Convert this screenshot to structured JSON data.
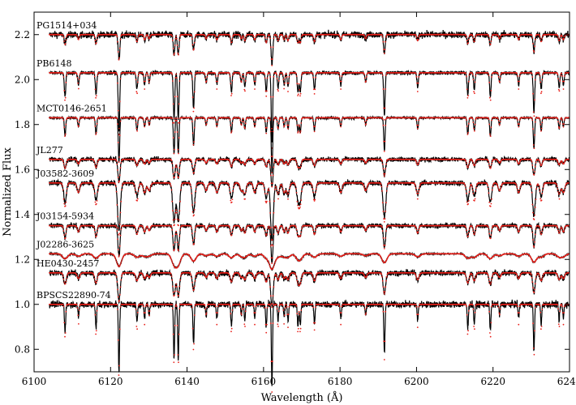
{
  "chart_data": {
    "type": "line",
    "xlabel": "Wavelength (Å)",
    "ylabel": "Normalized Flux",
    "xlim": [
      6100,
      6240
    ],
    "ylim": [
      0.7,
      2.3
    ],
    "xticks": [
      6100,
      6120,
      6140,
      6160,
      6180,
      6200,
      6220,
      6240
    ],
    "yticks": [
      0.8,
      1.0,
      1.2,
      1.4,
      1.6,
      1.8,
      2.0,
      2.2
    ],
    "xtick_labels": [
      "6100",
      "6120",
      "6140",
      "6160",
      "6180",
      "6200",
      "6220",
      "6240"
    ],
    "ytick_labels": [
      "0.8",
      "1.0",
      "1.2",
      "1.4",
      "1.6",
      "1.8",
      "2.0",
      "2.2"
    ],
    "grid": false,
    "observed_color": "#000000",
    "model_color": "#e8201a",
    "x_start": 6104,
    "series": [
      {
        "name": "PG1514+034",
        "offset": 2.2,
        "noise": 0.014,
        "strength": 0.45,
        "broad": 1.0,
        "model_diff": 0.002
      },
      {
        "name": "PB6148",
        "offset": 2.03,
        "noise": 0.008,
        "strength": 1.05,
        "broad": 0.85,
        "model_diff": 0.02
      },
      {
        "name": "MCT0146-2651",
        "offset": 1.83,
        "noise": 0.005,
        "strength": 0.8,
        "broad": 0.8,
        "model_diff": 0.005
      },
      {
        "name": "JL277",
        "offset": 1.645,
        "noise": 0.01,
        "strength": 0.4,
        "broad": 1.3,
        "model_diff": 0.002
      },
      {
        "name": "J03582-3609",
        "offset": 1.54,
        "noise": 0.011,
        "strength": 0.85,
        "broad": 1.6,
        "model_diff": 0.02
      },
      {
        "name": "J03154-5934",
        "offset": 1.35,
        "noise": 0.01,
        "strength": 0.55,
        "broad": 1.2,
        "model_diff": 0.003
      },
      {
        "name": "J02286-3625",
        "offset": 1.225,
        "noise": 0.003,
        "strength": 0.22,
        "broad": 3.0,
        "model_diff": 0.001
      },
      {
        "name": "HE0430-2457",
        "offset": 1.14,
        "noise": 0.012,
        "strength": 0.5,
        "broad": 1.5,
        "model_diff": 0.003
      },
      {
        "name": "BPSCS22890-74",
        "offset": 1.0,
        "noise": 0.014,
        "strength": 1.2,
        "broad": 0.7,
        "model_diff": 0.03
      }
    ],
    "lines": [
      {
        "w": 6108.1,
        "d": 0.1
      },
      {
        "w": 6111.6,
        "d": 0.05
      },
      {
        "w": 6116.2,
        "d": 0.09
      },
      {
        "w": 6122.2,
        "d": 0.25
      },
      {
        "w": 6126.9,
        "d": 0.07
      },
      {
        "w": 6128.9,
        "d": 0.05
      },
      {
        "w": 6130.1,
        "d": 0.04
      },
      {
        "w": 6136.6,
        "d": 0.2
      },
      {
        "w": 6137.7,
        "d": 0.2
      },
      {
        "w": 6141.7,
        "d": 0.15
      },
      {
        "w": 6145.0,
        "d": 0.04
      },
      {
        "w": 6147.8,
        "d": 0.05
      },
      {
        "w": 6151.6,
        "d": 0.08
      },
      {
        "w": 6154.2,
        "d": 0.04
      },
      {
        "w": 6155.1,
        "d": 0.06
      },
      {
        "w": 6157.7,
        "d": 0.05
      },
      {
        "w": 6160.7,
        "d": 0.08
      },
      {
        "w": 6162.2,
        "d": 0.3
      },
      {
        "w": 6163.8,
        "d": 0.06
      },
      {
        "w": 6165.4,
        "d": 0.05
      },
      {
        "w": 6166.4,
        "d": 0.06
      },
      {
        "w": 6169.0,
        "d": 0.08
      },
      {
        "w": 6169.6,
        "d": 0.08
      },
      {
        "w": 6173.3,
        "d": 0.07
      },
      {
        "w": 6180.2,
        "d": 0.05
      },
      {
        "w": 6186.7,
        "d": 0.04
      },
      {
        "w": 6191.6,
        "d": 0.18
      },
      {
        "w": 6200.3,
        "d": 0.06
      },
      {
        "w": 6213.4,
        "d": 0.09
      },
      {
        "w": 6215.1,
        "d": 0.07
      },
      {
        "w": 6219.3,
        "d": 0.1
      },
      {
        "w": 6221.7,
        "d": 0.04
      },
      {
        "w": 6226.7,
        "d": 0.05
      },
      {
        "w": 6230.7,
        "d": 0.17
      },
      {
        "w": 6232.6,
        "d": 0.07
      },
      {
        "w": 6237.3,
        "d": 0.06
      },
      {
        "w": 6238.4,
        "d": 0.05
      }
    ]
  }
}
